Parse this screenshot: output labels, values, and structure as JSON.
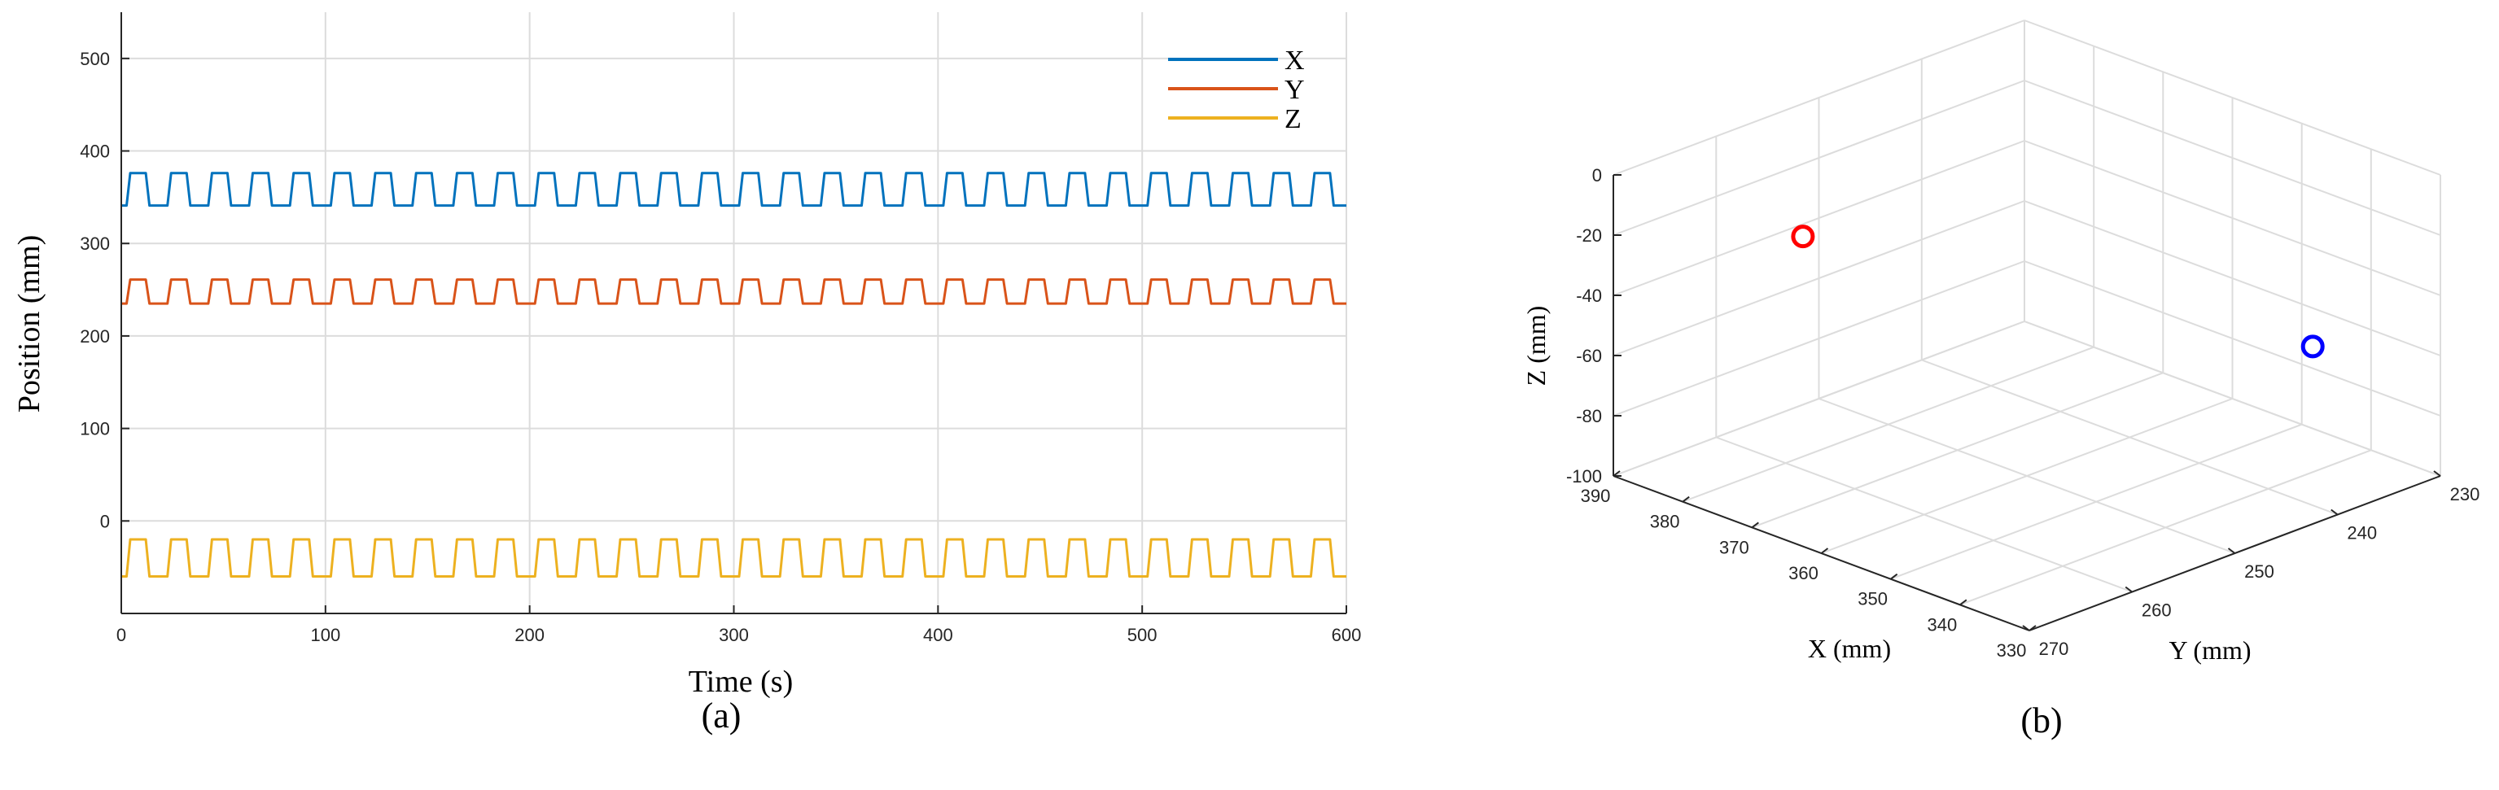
{
  "chart_data": [
    {
      "type": "line",
      "caption": "(a)",
      "xlabel": "Time (s)",
      "ylabel": "Position (mm)",
      "xlim": [
        0,
        600
      ],
      "ylim": [
        -100,
        550
      ],
      "xticks": [
        0,
        100,
        200,
        300,
        400,
        500,
        600
      ],
      "yticks": [
        0,
        100,
        200,
        300,
        400,
        500
      ],
      "grid": true,
      "legend_position": "top-right",
      "series": [
        {
          "name": "X",
          "color": "#0072BD",
          "low": 341,
          "high": 376,
          "period": 20,
          "duration": 600
        },
        {
          "name": "Y",
          "color": "#D95319",
          "low": 235,
          "high": 261,
          "period": 20,
          "duration": 600
        },
        {
          "name": "Z",
          "color": "#EDB120",
          "low": -60,
          "high": -20,
          "period": 20,
          "duration": 600
        }
      ]
    },
    {
      "type": "scatter",
      "caption": "(b)",
      "xlabel": "X (mm)",
      "ylabel": "Y (mm)",
      "zlabel": "Z (mm)",
      "xlim": [
        330,
        390
      ],
      "ylim": [
        230,
        270
      ],
      "zlim": [
        -100,
        0
      ],
      "xticks": [
        330,
        340,
        350,
        360,
        370,
        380,
        390
      ],
      "yticks": [
        230,
        240,
        250,
        260,
        270
      ],
      "zticks": [
        -100,
        -80,
        -60,
        -40,
        -20,
        0
      ],
      "grid": true,
      "points": [
        {
          "x": 376,
          "y": 261,
          "z": -20,
          "color": "#FF0000"
        },
        {
          "x": 341,
          "y": 235,
          "z": -60,
          "color": "#0000FF"
        }
      ]
    }
  ]
}
